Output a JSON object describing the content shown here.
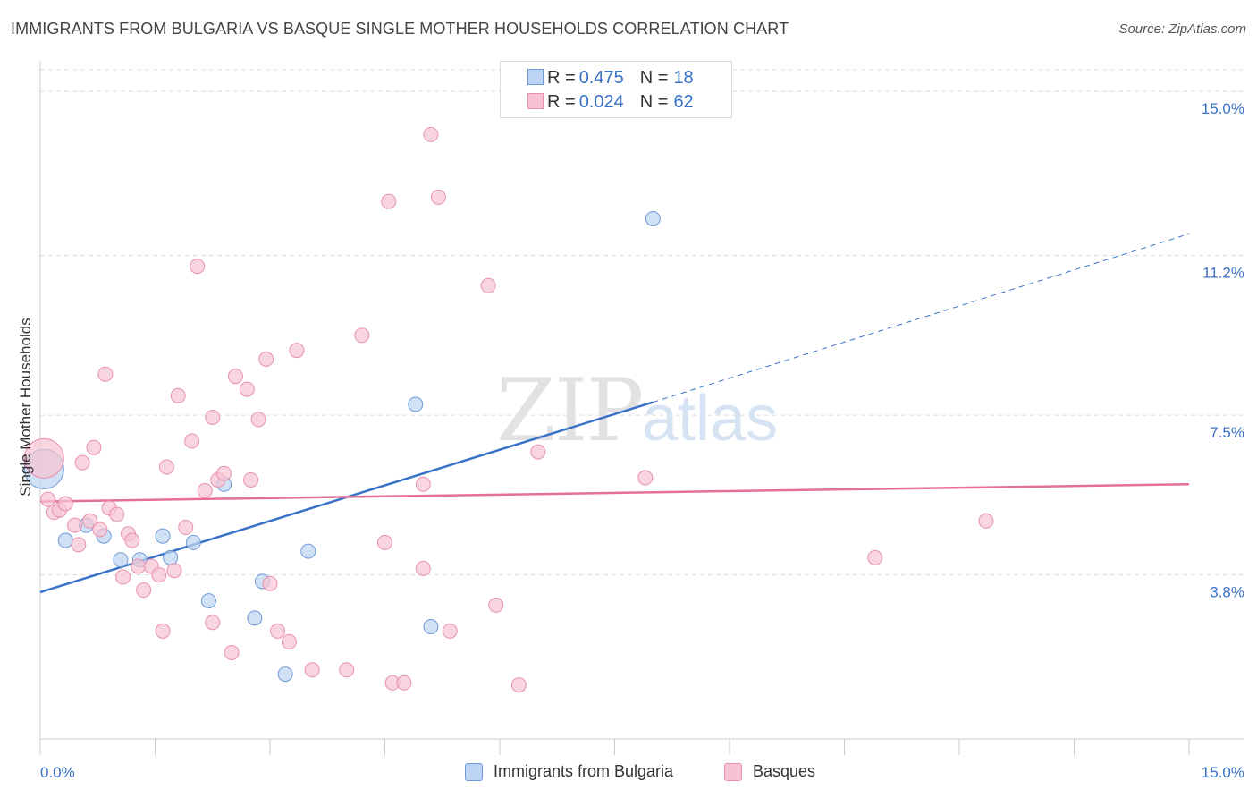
{
  "title": "IMMIGRANTS FROM BULGARIA VS BASQUE SINGLE MOTHER HOUSEHOLDS CORRELATION CHART",
  "source": "Source: ZipAtlas.com",
  "watermark": {
    "zip": "ZIP",
    "atlas": "atlas"
  },
  "colors": {
    "blue": "#3a72c8",
    "blue_fill": "#bcd4f2",
    "pink": "#e46f98",
    "pink_fill": "#f7c3d3",
    "grid": "#dddddd",
    "tick_label": "#3a72c8"
  },
  "legend_top": {
    "rows": [
      {
        "r_label": "R = ",
        "r_value": "0.475",
        "n_label": "N = ",
        "n_value": "18"
      },
      {
        "r_label": "R = ",
        "r_value": "0.024",
        "n_label": "N = ",
        "n_value": "62"
      }
    ]
  },
  "legend_bottom": [
    {
      "name": "Immigrants from Bulgaria"
    },
    {
      "name": "Basques"
    }
  ],
  "chart_data": {
    "type": "scatter",
    "title": "IMMIGRANTS FROM BULGARIA VS BASQUE SINGLE MOTHER HOUSEHOLDS CORRELATION CHART",
    "xlabel": "",
    "ylabel": "Single Mother Households",
    "xlim": [
      0,
      15
    ],
    "ylim": [
      0,
      15.5
    ],
    "x_tick_labels": [
      "0.0%",
      "15.0%"
    ],
    "y_ticks": [
      3.8,
      7.5,
      11.2,
      15.0
    ],
    "y_tick_labels": [
      "3.8%",
      "7.5%",
      "11.2%",
      "15.0%"
    ],
    "grid": true,
    "legend_position": "top-center",
    "series": [
      {
        "name": "Immigrants from Bulgaria",
        "color": "#3a72c8",
        "r": 0.475,
        "n": 18,
        "trend": {
          "x": [
            0,
            8.0
          ],
          "y": [
            3.4,
            7.8
          ],
          "dashed_extension": {
            "x": [
              8.0,
              15.0
            ],
            "y": [
              7.8,
              11.7
            ]
          }
        },
        "points": [
          {
            "x": 0.05,
            "y": 6.25,
            "big": true
          },
          {
            "x": 0.33,
            "y": 4.6
          },
          {
            "x": 0.6,
            "y": 4.95
          },
          {
            "x": 0.83,
            "y": 4.7
          },
          {
            "x": 1.05,
            "y": 4.15
          },
          {
            "x": 1.3,
            "y": 4.15
          },
          {
            "x": 1.6,
            "y": 4.7
          },
          {
            "x": 1.7,
            "y": 4.2
          },
          {
            "x": 2.0,
            "y": 4.55
          },
          {
            "x": 2.2,
            "y": 3.2
          },
          {
            "x": 2.4,
            "y": 5.9
          },
          {
            "x": 2.8,
            "y": 2.8
          },
          {
            "x": 2.9,
            "y": 3.65
          },
          {
            "x": 3.2,
            "y": 1.5
          },
          {
            "x": 3.5,
            "y": 4.35
          },
          {
            "x": 4.9,
            "y": 7.75
          },
          {
            "x": 5.1,
            "y": 2.6
          },
          {
            "x": 8.0,
            "y": 12.05
          }
        ]
      },
      {
        "name": "Basques",
        "color": "#e46f98",
        "r": 0.024,
        "n": 62,
        "trend": {
          "x": [
            0,
            15.0
          ],
          "y": [
            5.5,
            5.9
          ]
        },
        "points": [
          {
            "x": 0.05,
            "y": 6.5,
            "big": true
          },
          {
            "x": 0.1,
            "y": 5.55
          },
          {
            "x": 0.18,
            "y": 5.25
          },
          {
            "x": 0.25,
            "y": 5.3
          },
          {
            "x": 0.33,
            "y": 5.45
          },
          {
            "x": 0.45,
            "y": 4.95
          },
          {
            "x": 0.5,
            "y": 4.5
          },
          {
            "x": 0.55,
            "y": 6.4
          },
          {
            "x": 0.65,
            "y": 5.05
          },
          {
            "x": 0.7,
            "y": 6.75
          },
          {
            "x": 0.78,
            "y": 4.85
          },
          {
            "x": 0.85,
            "y": 8.45
          },
          {
            "x": 0.9,
            "y": 5.35
          },
          {
            "x": 1.0,
            "y": 5.2
          },
          {
            "x": 1.08,
            "y": 3.75
          },
          {
            "x": 1.15,
            "y": 4.75
          },
          {
            "x": 1.2,
            "y": 4.6
          },
          {
            "x": 1.28,
            "y": 4.0
          },
          {
            "x": 1.35,
            "y": 3.45
          },
          {
            "x": 1.45,
            "y": 4.0
          },
          {
            "x": 1.55,
            "y": 3.8
          },
          {
            "x": 1.6,
            "y": 2.5
          },
          {
            "x": 1.65,
            "y": 6.3
          },
          {
            "x": 1.75,
            "y": 3.9
          },
          {
            "x": 1.8,
            "y": 7.95
          },
          {
            "x": 1.9,
            "y": 4.9
          },
          {
            "x": 1.98,
            "y": 6.9
          },
          {
            "x": 2.05,
            "y": 10.95
          },
          {
            "x": 2.15,
            "y": 5.75
          },
          {
            "x": 2.25,
            "y": 7.45
          },
          {
            "x": 2.25,
            "y": 2.7
          },
          {
            "x": 2.32,
            "y": 6.0
          },
          {
            "x": 2.4,
            "y": 6.15
          },
          {
            "x": 2.5,
            "y": 2.0
          },
          {
            "x": 2.55,
            "y": 8.4
          },
          {
            "x": 2.7,
            "y": 8.1
          },
          {
            "x": 2.75,
            "y": 6.0
          },
          {
            "x": 2.85,
            "y": 7.4
          },
          {
            "x": 2.95,
            "y": 8.8
          },
          {
            "x": 3.0,
            "y": 3.6
          },
          {
            "x": 3.1,
            "y": 2.5
          },
          {
            "x": 3.25,
            "y": 2.25
          },
          {
            "x": 3.35,
            "y": 9.0
          },
          {
            "x": 3.55,
            "y": 1.6
          },
          {
            "x": 4.0,
            "y": 1.6
          },
          {
            "x": 4.2,
            "y": 9.35
          },
          {
            "x": 4.5,
            "y": 4.55
          },
          {
            "x": 4.55,
            "y": 12.45
          },
          {
            "x": 4.6,
            "y": 1.3
          },
          {
            "x": 4.75,
            "y": 1.3
          },
          {
            "x": 5.0,
            "y": 5.9
          },
          {
            "x": 5.0,
            "y": 3.95
          },
          {
            "x": 5.1,
            "y": 14.0
          },
          {
            "x": 5.2,
            "y": 12.55
          },
          {
            "x": 5.35,
            "y": 2.5
          },
          {
            "x": 5.85,
            "y": 10.5
          },
          {
            "x": 5.95,
            "y": 3.1
          },
          {
            "x": 6.25,
            "y": 1.25
          },
          {
            "x": 6.5,
            "y": 6.65
          },
          {
            "x": 7.9,
            "y": 6.05
          },
          {
            "x": 10.9,
            "y": 4.2
          },
          {
            "x": 12.35,
            "y": 5.05
          }
        ]
      }
    ]
  }
}
